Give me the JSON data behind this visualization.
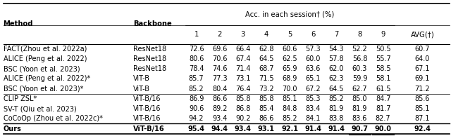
{
  "title": "Acc. in each session† (%)",
  "col_headers": [
    "Method",
    "Backbone",
    "1",
    "2",
    "3",
    "4",
    "5",
    "6",
    "7",
    "8",
    "9",
    "AVG(†)"
  ],
  "rows": [
    [
      "FACT(Zhou et al. 2022a)",
      "ResNet18",
      "72.6",
      "69.6",
      "66.4",
      "62.8",
      "60.6",
      "57.3",
      "54.3",
      "52.2",
      "50.5",
      "60.7"
    ],
    [
      "ALICE (Peng et al. 2022)",
      "ResNet18",
      "80.6",
      "70.6",
      "67.4",
      "64.5",
      "62.5",
      "60.0",
      "57.8",
      "56.8",
      "55.7",
      "64.0"
    ],
    [
      "BSC (Yoon et al. 2023)",
      "ResNet18",
      "78.4",
      "74.6",
      "71.4",
      "68.7",
      "65.9",
      "63.6",
      "62.0",
      "60.3",
      "58.5",
      "67.1"
    ],
    [
      "ALICE (Peng et al. 2022)*",
      "ViT-B",
      "85.7",
      "77.3",
      "73.1",
      "71.5",
      "68.9",
      "65.1",
      "62.3",
      "59.9",
      "58.1",
      "69.1"
    ],
    [
      "BSC (Yoon et al. 2023)*",
      "ViT-B",
      "85.2",
      "80.4",
      "76.4",
      "73.2",
      "70.0",
      "67.2",
      "64.5",
      "62.7",
      "61.5",
      "71.2"
    ],
    [
      "CLIP ZSL*",
      "ViT-B/16",
      "86.9",
      "86.6",
      "85.8",
      "85.8",
      "85.1",
      "85.3",
      "85.2",
      "85.0",
      "84.7",
      "85.6"
    ],
    [
      "SV-T (Qiu et al. 2023)",
      "ViT-B/16",
      "90.6",
      "89.2",
      "86.8",
      "85.4",
      "84.8",
      "83.4",
      "81.9",
      "81.9",
      "81.7",
      "85.1"
    ],
    [
      "CoCoOp (Zhou et al. 2022c)*",
      "ViT-B/16",
      "94.2",
      "93.4",
      "90.2",
      "86.6",
      "85.2",
      "84.1",
      "83.8",
      "83.6",
      "82.7",
      "87.1"
    ],
    [
      "Ours",
      "ViT-B/16",
      "95.4",
      "94.4",
      "93.4",
      "93.1",
      "92.1",
      "91.4",
      "91.4",
      "90.7",
      "90.0",
      "92.4"
    ]
  ],
  "bold_rows": [
    8
  ],
  "underline_cells": [
    [
      8,
      9
    ],
    [
      8,
      10
    ]
  ],
  "separator_after_rows": [
    4,
    7
  ],
  "background_color": "#ffffff",
  "text_color": "#000000",
  "font_size": 7.0,
  "header_font_size": 7.2
}
